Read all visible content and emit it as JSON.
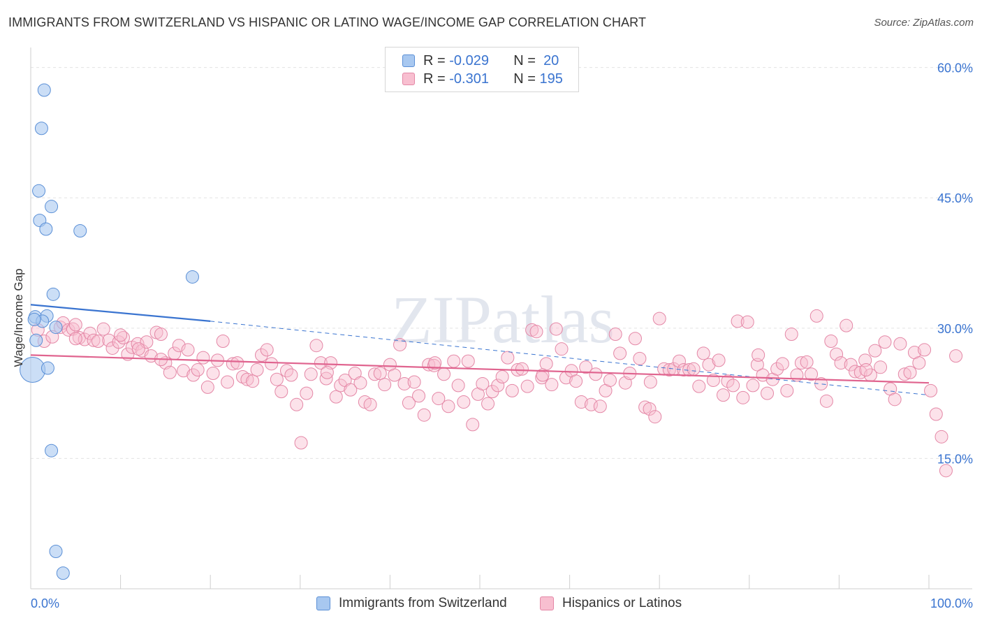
{
  "title": "IMMIGRANTS FROM SWITZERLAND VS HISPANIC OR LATINO WAGE/INCOME GAP CORRELATION CHART",
  "source": "Source: ZipAtlas.com",
  "watermark": "ZIPatlas",
  "legend": {
    "rows": [
      {
        "r_label": "R =",
        "r_value": "-0.029",
        "n_label": "N =",
        "n_value": "20",
        "color": "#a8c8f0",
        "border": "#5a8fd6"
      },
      {
        "r_label": "R =",
        "r_value": "-0.301",
        "n_label": "N =",
        "n_value": "195",
        "color": "#f8bfd0",
        "border": "#e487a6"
      }
    ]
  },
  "bottom_legend": [
    {
      "label": "Immigrants from Switzerland",
      "color": "#a8c8f0",
      "border": "#5a8fd6"
    },
    {
      "label": "Hispanics or Latinos",
      "color": "#f8bfd0",
      "border": "#e487a6"
    }
  ],
  "chart_data": {
    "type": "scatter",
    "title": "IMMIGRANTS FROM SWITZERLAND VS HISPANIC OR LATINO WAGE/INCOME GAP CORRELATION CHART",
    "xlabel": "",
    "ylabel": "Wage/Income Gap",
    "xlim": [
      0,
      100
    ],
    "ylim": [
      0,
      61.5
    ],
    "x_tick_labels": [
      "0.0%",
      "100.0%"
    ],
    "y_ticks": [
      15,
      30,
      45,
      60
    ],
    "y_tick_labels": [
      "15.0%",
      "30.0%",
      "45.0%",
      "60.0%"
    ],
    "grid": true,
    "legend_position": "top-center",
    "series": [
      {
        "name": "Immigrants from Switzerland",
        "color": "#a8c8f0",
        "stroke": "#5a8fd6",
        "trend_color": "#3a74d0",
        "trend": {
          "x0": 0,
          "y0": 32.7,
          "x1": 20,
          "y1": 30.8,
          "dash_to_x": 100,
          "dash_to_y": 22.3
        },
        "points": [
          [
            1.5,
            57.4
          ],
          [
            1.2,
            53.0
          ],
          [
            0.9,
            45.8
          ],
          [
            2.3,
            44.0
          ],
          [
            1.0,
            42.4
          ],
          [
            1.7,
            41.4
          ],
          [
            5.5,
            41.2
          ],
          [
            18.0,
            35.9
          ],
          [
            2.5,
            33.9
          ],
          [
            0.5,
            31.3
          ],
          [
            1.8,
            31.4
          ],
          [
            1.3,
            30.8
          ],
          [
            2.8,
            30.1
          ],
          [
            0.6,
            28.6
          ],
          [
            0.2,
            25.2
          ],
          [
            1.9,
            25.4
          ],
          [
            2.3,
            15.9
          ],
          [
            2.8,
            4.3
          ],
          [
            3.6,
            1.8
          ],
          [
            0.4,
            31.0
          ]
        ]
      },
      {
        "name": "Hispanics or Latinos",
        "color": "#f8bfd0",
        "stroke": "#e487a6",
        "trend_color": "#e0648f",
        "trend": {
          "x0": 0,
          "y0": 26.9,
          "x1": 100,
          "y1": 23.7
        },
        "points": [
          [
            0.8,
            29.8
          ],
          [
            1.5,
            28.5
          ],
          [
            2.4,
            29.0
          ],
          [
            3.3,
            30.1
          ],
          [
            3.6,
            30.6
          ],
          [
            4.2,
            29.8
          ],
          [
            4.7,
            29.9
          ],
          [
            5.0,
            30.4
          ],
          [
            5.4,
            28.9
          ],
          [
            6.0,
            28.7
          ],
          [
            6.6,
            29.4
          ],
          [
            7.0,
            28.6
          ],
          [
            7.5,
            28.5
          ],
          [
            8.1,
            29.9
          ],
          [
            8.7,
            28.6
          ],
          [
            9.1,
            27.7
          ],
          [
            9.8,
            28.4
          ],
          [
            10.3,
            28.9
          ],
          [
            10.8,
            27.0
          ],
          [
            11.3,
            27.8
          ],
          [
            11.9,
            28.2
          ],
          [
            12.4,
            27.4
          ],
          [
            12.9,
            28.4
          ],
          [
            13.4,
            26.8
          ],
          [
            14.0,
            29.5
          ],
          [
            14.5,
            29.3
          ],
          [
            15.0,
            26.0
          ],
          [
            15.5,
            24.9
          ],
          [
            16.0,
            27.1
          ],
          [
            16.5,
            28.0
          ],
          [
            17.0,
            25.1
          ],
          [
            17.5,
            27.5
          ],
          [
            18.1,
            24.6
          ],
          [
            18.6,
            25.2
          ],
          [
            19.2,
            26.6
          ],
          [
            19.7,
            23.2
          ],
          [
            20.3,
            24.8
          ],
          [
            20.8,
            26.3
          ],
          [
            21.4,
            28.5
          ],
          [
            21.9,
            23.8
          ],
          [
            22.5,
            25.9
          ],
          [
            23.0,
            26.0
          ],
          [
            23.6,
            24.4
          ],
          [
            24.1,
            24.1
          ],
          [
            24.7,
            23.9
          ],
          [
            25.2,
            25.2
          ],
          [
            25.7,
            26.9
          ],
          [
            26.3,
            27.5
          ],
          [
            26.8,
            25.9
          ],
          [
            27.4,
            24.1
          ],
          [
            27.9,
            22.7
          ],
          [
            28.5,
            25.1
          ],
          [
            29.0,
            24.6
          ],
          [
            29.6,
            21.2
          ],
          [
            30.1,
            16.8
          ],
          [
            30.7,
            22.5
          ],
          [
            31.2,
            24.7
          ],
          [
            31.8,
            28.0
          ],
          [
            32.3,
            26.0
          ],
          [
            32.9,
            24.2
          ],
          [
            33.4,
            26.0
          ],
          [
            34.0,
            22.1
          ],
          [
            34.5,
            23.4
          ],
          [
            35.0,
            24.0
          ],
          [
            35.6,
            22.9
          ],
          [
            36.1,
            24.8
          ],
          [
            36.7,
            23.7
          ],
          [
            37.2,
            21.5
          ],
          [
            37.8,
            21.2
          ],
          [
            38.3,
            24.7
          ],
          [
            38.9,
            24.8
          ],
          [
            39.4,
            23.5
          ],
          [
            40.0,
            25.8
          ],
          [
            40.5,
            24.6
          ],
          [
            41.1,
            28.1
          ],
          [
            41.6,
            23.6
          ],
          [
            42.1,
            21.4
          ],
          [
            42.7,
            23.8
          ],
          [
            43.2,
            22.2
          ],
          [
            43.8,
            20.0
          ],
          [
            44.3,
            25.8
          ],
          [
            44.9,
            25.7
          ],
          [
            45.4,
            21.9
          ],
          [
            46.0,
            24.7
          ],
          [
            46.5,
            21.0
          ],
          [
            47.1,
            26.2
          ],
          [
            47.6,
            23.4
          ],
          [
            48.2,
            21.5
          ],
          [
            48.7,
            26.2
          ],
          [
            49.2,
            18.9
          ],
          [
            49.8,
            22.4
          ],
          [
            50.3,
            23.6
          ],
          [
            50.9,
            21.3
          ],
          [
            51.4,
            22.7
          ],
          [
            52.0,
            23.4
          ],
          [
            52.5,
            24.4
          ],
          [
            53.1,
            26.6
          ],
          [
            53.6,
            22.8
          ],
          [
            54.2,
            25.2
          ],
          [
            54.7,
            25.3
          ],
          [
            55.3,
            23.3
          ],
          [
            55.8,
            29.8
          ],
          [
            56.3,
            29.6
          ],
          [
            56.9,
            24.3
          ],
          [
            57.4,
            25.9
          ],
          [
            58.0,
            23.5
          ],
          [
            58.5,
            29.9
          ],
          [
            59.1,
            27.6
          ],
          [
            59.6,
            24.3
          ],
          [
            60.2,
            25.1
          ],
          [
            60.7,
            23.9
          ],
          [
            61.3,
            21.5
          ],
          [
            61.8,
            25.5
          ],
          [
            62.4,
            21.2
          ],
          [
            62.9,
            24.7
          ],
          [
            63.4,
            21.0
          ],
          [
            64.0,
            22.8
          ],
          [
            64.5,
            24.0
          ],
          [
            65.1,
            29.3
          ],
          [
            65.6,
            27.1
          ],
          [
            66.2,
            23.7
          ],
          [
            66.7,
            24.8
          ],
          [
            67.3,
            28.8
          ],
          [
            67.8,
            26.5
          ],
          [
            68.4,
            20.9
          ],
          [
            68.9,
            20.7
          ],
          [
            69.5,
            19.8
          ],
          [
            70.0,
            31.1
          ],
          [
            70.5,
            25.3
          ],
          [
            71.1,
            25.2
          ],
          [
            71.6,
            25.3
          ],
          [
            72.2,
            26.2
          ],
          [
            72.7,
            25.2
          ],
          [
            73.3,
            25.2
          ],
          [
            73.8,
            25.3
          ],
          [
            74.4,
            23.3
          ],
          [
            74.9,
            27.1
          ],
          [
            75.5,
            25.8
          ],
          [
            76.0,
            24.0
          ],
          [
            76.6,
            26.3
          ],
          [
            77.1,
            22.3
          ],
          [
            77.6,
            23.9
          ],
          [
            78.2,
            23.4
          ],
          [
            78.7,
            30.8
          ],
          [
            79.3,
            22.0
          ],
          [
            79.8,
            30.7
          ],
          [
            80.4,
            23.4
          ],
          [
            80.9,
            25.8
          ],
          [
            81.5,
            24.6
          ],
          [
            82.0,
            22.5
          ],
          [
            82.6,
            24.1
          ],
          [
            83.1,
            25.3
          ],
          [
            83.7,
            25.9
          ],
          [
            84.2,
            22.8
          ],
          [
            84.7,
            29.3
          ],
          [
            85.3,
            24.6
          ],
          [
            85.8,
            26.0
          ],
          [
            86.4,
            26.1
          ],
          [
            86.9,
            24.7
          ],
          [
            87.5,
            31.4
          ],
          [
            88.0,
            23.6
          ],
          [
            88.6,
            21.6
          ],
          [
            89.1,
            28.5
          ],
          [
            89.7,
            27.0
          ],
          [
            90.2,
            26.0
          ],
          [
            90.8,
            30.3
          ],
          [
            91.3,
            25.8
          ],
          [
            91.8,
            25.0
          ],
          [
            92.4,
            24.9
          ],
          [
            92.9,
            26.3
          ],
          [
            93.5,
            24.6
          ],
          [
            94.0,
            27.4
          ],
          [
            94.6,
            25.5
          ],
          [
            95.1,
            28.4
          ],
          [
            95.7,
            23.0
          ],
          [
            96.2,
            21.8
          ],
          [
            96.8,
            28.2
          ],
          [
            97.3,
            24.7
          ],
          [
            97.9,
            24.9
          ],
          [
            98.4,
            27.2
          ],
          [
            98.9,
            26.0
          ],
          [
            99.5,
            27.5
          ],
          [
            100.2,
            22.8
          ],
          [
            100.8,
            20.1
          ],
          [
            101.4,
            17.5
          ],
          [
            101.9,
            13.6
          ],
          [
            103.0,
            26.8
          ],
          [
            10.0,
            29.2
          ],
          [
            12.0,
            27.6
          ],
          [
            14.5,
            26.4
          ],
          [
            33.0,
            24.9
          ],
          [
            45.0,
            26.0
          ],
          [
            57.0,
            24.6
          ],
          [
            69.0,
            23.8
          ],
          [
            81.0,
            26.9
          ],
          [
            93.0,
            25.2
          ],
          [
            5.0,
            28.8
          ]
        ]
      }
    ]
  }
}
